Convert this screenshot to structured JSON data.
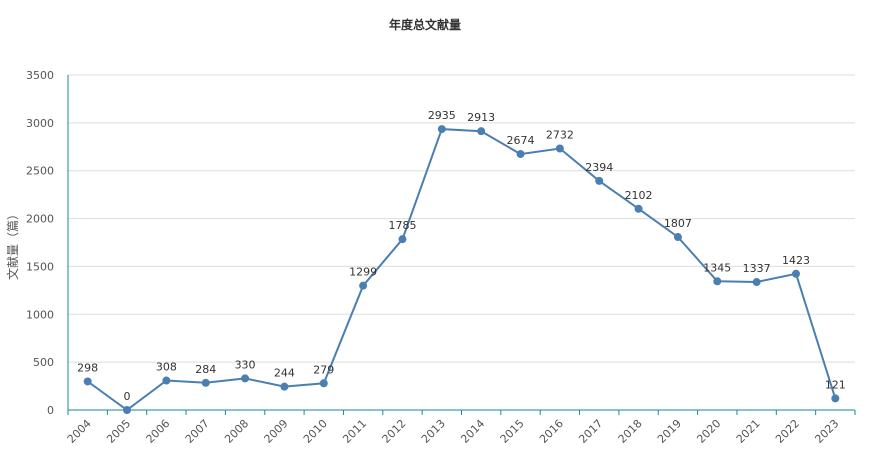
{
  "chart_data": {
    "type": "line",
    "title": "年度总文献量",
    "ylabel": "文献量（篇）",
    "xlabel": "",
    "categories": [
      "2004",
      "2005",
      "2006",
      "2007",
      "2008",
      "2009",
      "2010",
      "2011",
      "2012",
      "2013",
      "2014",
      "2015",
      "2016",
      "2017",
      "2018",
      "2019",
      "2020",
      "2021",
      "2022",
      "2023"
    ],
    "values": [
      298,
      0,
      308,
      284,
      330,
      244,
      279,
      1299,
      1785,
      2935,
      2913,
      2674,
      2732,
      2394,
      2102,
      1807,
      1345,
      1337,
      1423,
      121
    ],
    "ylim": [
      0,
      3500
    ],
    "yticks": [
      0,
      500,
      1000,
      1500,
      2000,
      2500,
      3000,
      3500
    ],
    "grid": true,
    "legend": "none",
    "colors": {
      "line": "#4a7fb0",
      "axis": "#1a8a9a",
      "grid": "#dddddd"
    }
  }
}
